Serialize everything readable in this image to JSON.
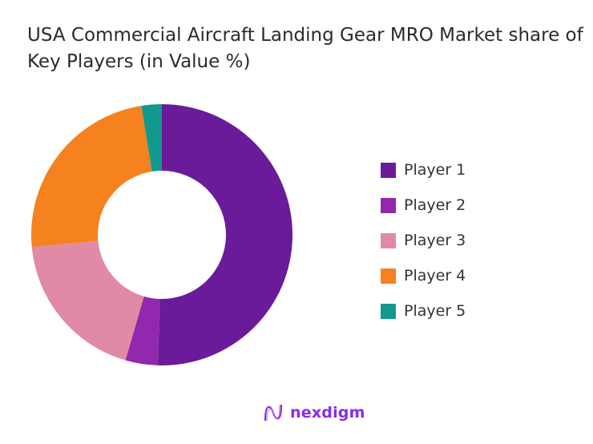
{
  "chart_data": {
    "type": "pie",
    "style": "donut",
    "title": "USA Commercial Aircraft Landing Gear MRO Market share of Key Players (in Value %)",
    "categories": [
      "Player 1",
      "Player 2",
      "Player 3",
      "Player 4",
      "Player 5"
    ],
    "values": [
      50.5,
      4,
      19,
      24,
      2.5
    ],
    "colors": [
      "#6a1b9a",
      "#9128ad",
      "#e08aa5",
      "#f5821f",
      "#11998e"
    ],
    "legend_position": "right"
  },
  "logo": {
    "text": "nexdigm"
  }
}
